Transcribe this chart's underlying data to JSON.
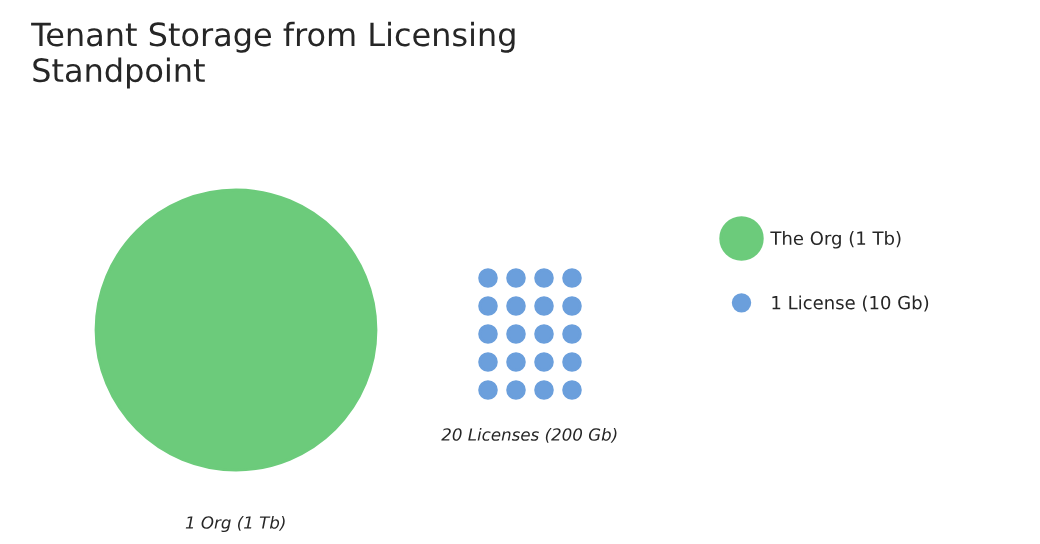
{
  "chart_data": {
    "type": "other",
    "title": "Tenant Storage from Licensing\nStandpoint",
    "categories": [
      "Org (1 Tb)",
      "Licenses (200 Gb)"
    ],
    "series": [
      {
        "name": "The Org (1 Tb)",
        "color": "#6ccb7b",
        "values": [
          1,
          null
        ],
        "value_labels": [
          "1",
          null
        ]
      },
      {
        "name": "1 License (10 Gb)",
        "color": "#6b9fdc",
        "values": [
          null,
          20
        ],
        "value_labels": [
          null,
          "20"
        ]
      }
    ],
    "legend": "right"
  }
}
